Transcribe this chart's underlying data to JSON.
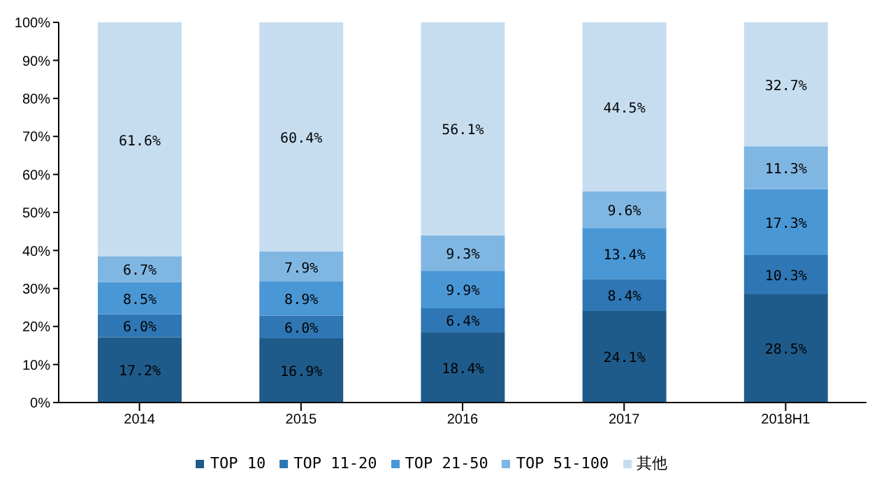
{
  "chart_data": {
    "type": "bar",
    "stacked": true,
    "categories": [
      "2014",
      "2015",
      "2016",
      "2017",
      "2018H1"
    ],
    "ylim": [
      0,
      100
    ],
    "yticks": [
      {
        "value": 0,
        "label": "0%"
      },
      {
        "value": 10,
        "label": "10%"
      },
      {
        "value": 20,
        "label": "20%"
      },
      {
        "value": 30,
        "label": "30%"
      },
      {
        "value": 40,
        "label": "40%"
      },
      {
        "value": 50,
        "label": "50%"
      },
      {
        "value": 60,
        "label": "60%"
      },
      {
        "value": 70,
        "label": "70%"
      },
      {
        "value": 80,
        "label": "80%"
      },
      {
        "value": 90,
        "label": "90%"
      },
      {
        "value": 100,
        "label": "100%"
      }
    ],
    "legend": "bottom",
    "grid": false,
    "series": [
      {
        "name": "TOP 10",
        "color": "#1f5b8a",
        "values": [
          17.2,
          16.9,
          18.4,
          24.1,
          28.5
        ],
        "value_labels": [
          "17.2%",
          "16.9%",
          "18.4%",
          "24.1%",
          "28.5%"
        ]
      },
      {
        "name": "TOP 11-20",
        "color": "#2f77b4",
        "values": [
          6.0,
          6.0,
          6.4,
          8.4,
          10.3
        ],
        "value_labels": [
          "6.0%",
          "6.0%",
          "6.4%",
          "8.4%",
          "10.3%"
        ]
      },
      {
        "name": "TOP 21-50",
        "color": "#4a97d6",
        "values": [
          8.5,
          8.9,
          9.9,
          13.4,
          17.3
        ],
        "value_labels": [
          "8.5%",
          "8.9%",
          "9.9%",
          "13.4%",
          "17.3%"
        ]
      },
      {
        "name": "TOP 51-100",
        "color": "#80b6e2",
        "values": [
          6.7,
          7.9,
          9.3,
          9.6,
          11.3
        ],
        "value_labels": [
          "6.7%",
          "7.9%",
          "9.3%",
          "9.6%",
          "11.3%"
        ]
      },
      {
        "name": "其他",
        "color": "#c6ddf0",
        "values": [
          61.6,
          60.4,
          56.1,
          44.5,
          32.7
        ],
        "value_labels": [
          "61.6%",
          "60.4%",
          "56.1%",
          "44.5%",
          "32.7%"
        ]
      }
    ]
  }
}
